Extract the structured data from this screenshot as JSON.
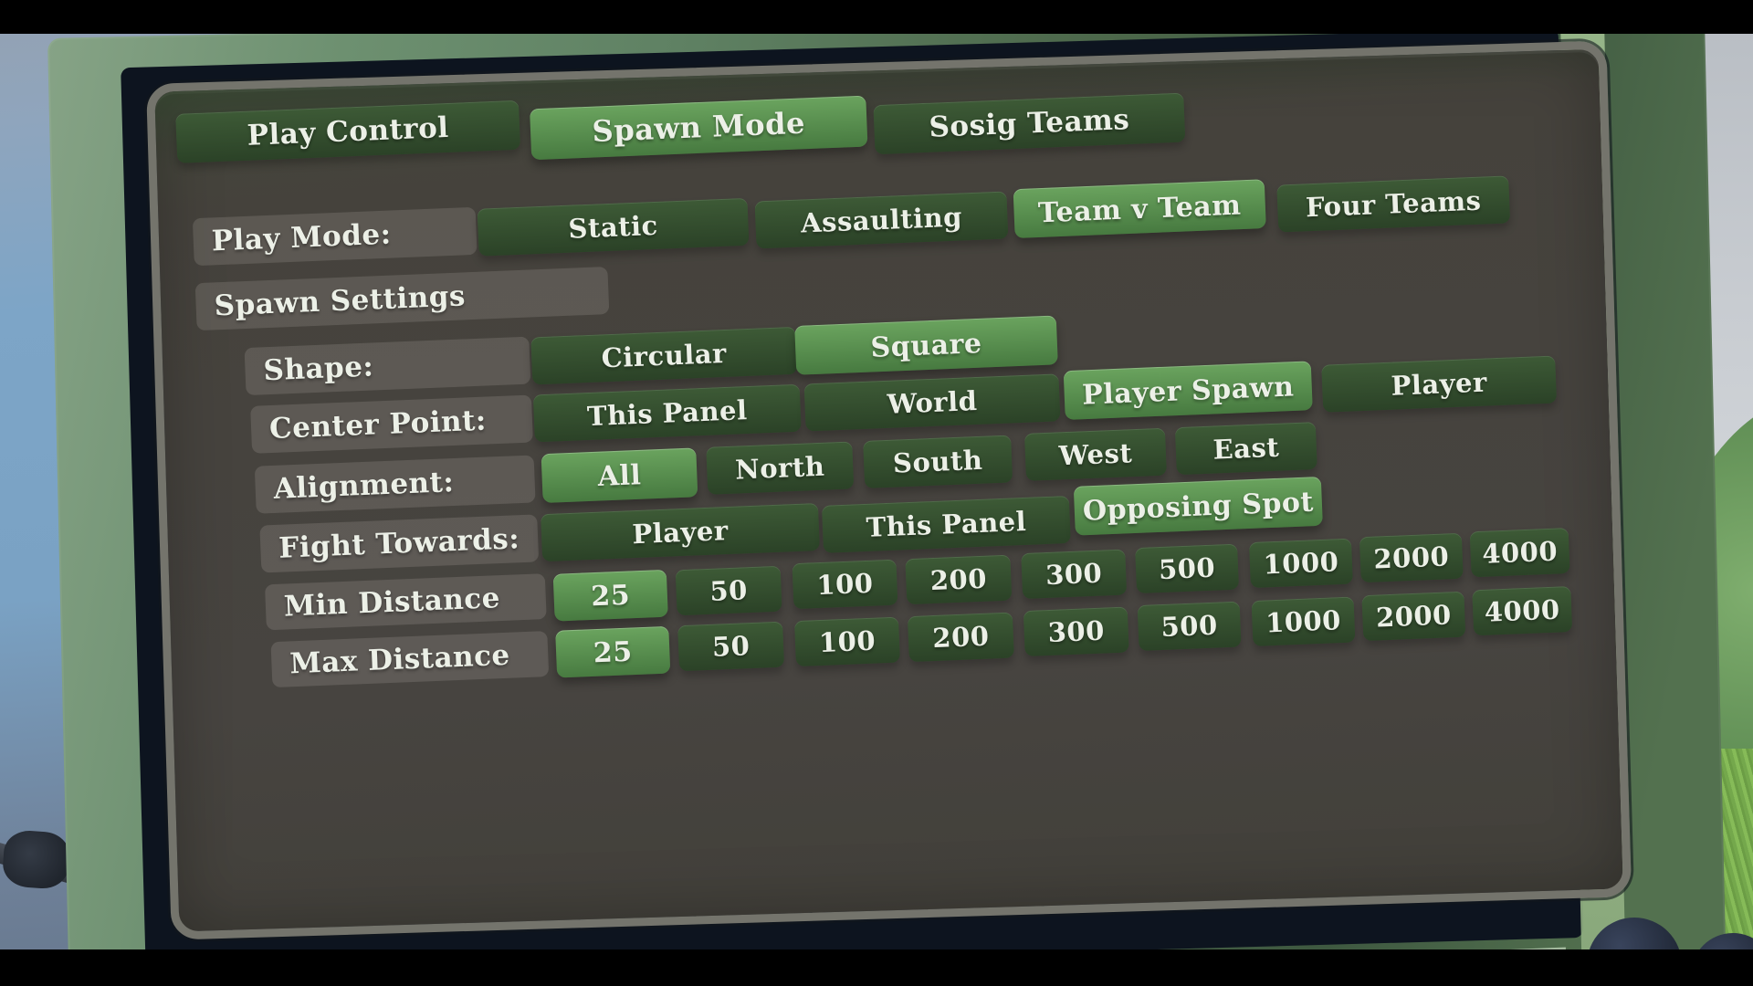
{
  "tabs": [
    {
      "label": "Play Control",
      "selected": false
    },
    {
      "label": "Spawn Mode",
      "selected": true
    },
    {
      "label": "Sosig Teams",
      "selected": false
    }
  ],
  "rows": [
    {
      "id": "play_mode",
      "label": "Play Mode:",
      "options": [
        {
          "label": "Static",
          "selected": false
        },
        {
          "label": "Assaulting",
          "selected": false
        },
        {
          "label": "Team v Team",
          "selected": true
        },
        {
          "label": "Four Teams",
          "selected": false
        }
      ]
    },
    {
      "id": "spawn_settings",
      "label": "Spawn Settings",
      "options": []
    },
    {
      "id": "shape",
      "label": "Shape:",
      "options": [
        {
          "label": "Circular",
          "selected": false
        },
        {
          "label": "Square",
          "selected": true
        }
      ]
    },
    {
      "id": "center_point",
      "label": "Center Point:",
      "options": [
        {
          "label": "This Panel",
          "selected": false
        },
        {
          "label": "World",
          "selected": false
        },
        {
          "label": "Player Spawn",
          "selected": true
        },
        {
          "label": "Player",
          "selected": false
        }
      ]
    },
    {
      "id": "alignment",
      "label": "Alignment:",
      "options": [
        {
          "label": "All",
          "selected": true
        },
        {
          "label": "North",
          "selected": false
        },
        {
          "label": "South",
          "selected": false
        },
        {
          "label": "West",
          "selected": false
        },
        {
          "label": "East",
          "selected": false
        }
      ]
    },
    {
      "id": "fight_towards",
      "label": "Fight Towards:",
      "options": [
        {
          "label": "Player",
          "selected": false
        },
        {
          "label": "This Panel",
          "selected": false
        },
        {
          "label": "Opposing Spot",
          "selected": true
        }
      ]
    },
    {
      "id": "min_distance",
      "label": "Min Distance",
      "options": [
        {
          "label": "25",
          "selected": true
        },
        {
          "label": "50",
          "selected": false
        },
        {
          "label": "100",
          "selected": false
        },
        {
          "label": "200",
          "selected": false
        },
        {
          "label": "300",
          "selected": false
        },
        {
          "label": "500",
          "selected": false
        },
        {
          "label": "1000",
          "selected": false
        },
        {
          "label": "2000",
          "selected": false
        },
        {
          "label": "4000",
          "selected": false
        }
      ]
    },
    {
      "id": "max_distance",
      "label": "Max Distance",
      "options": [
        {
          "label": "25",
          "selected": true
        },
        {
          "label": "50",
          "selected": false
        },
        {
          "label": "100",
          "selected": false
        },
        {
          "label": "200",
          "selected": false
        },
        {
          "label": "300",
          "selected": false
        },
        {
          "label": "500",
          "selected": false
        },
        {
          "label": "1000",
          "selected": false
        },
        {
          "label": "2000",
          "selected": false
        },
        {
          "label": "4000",
          "selected": false
        }
      ]
    }
  ],
  "colors": {
    "button_top": "#3d5a36",
    "button_bottom": "#2b4227",
    "button_selected_top": "#6aa35e",
    "button_selected_bottom": "#477a40",
    "label_bg": "rgba(235,230,220,0.14)",
    "screen": "#474440",
    "frame": "#5f8163",
    "text": "#ecf0e7",
    "letterbox": "#000000"
  }
}
